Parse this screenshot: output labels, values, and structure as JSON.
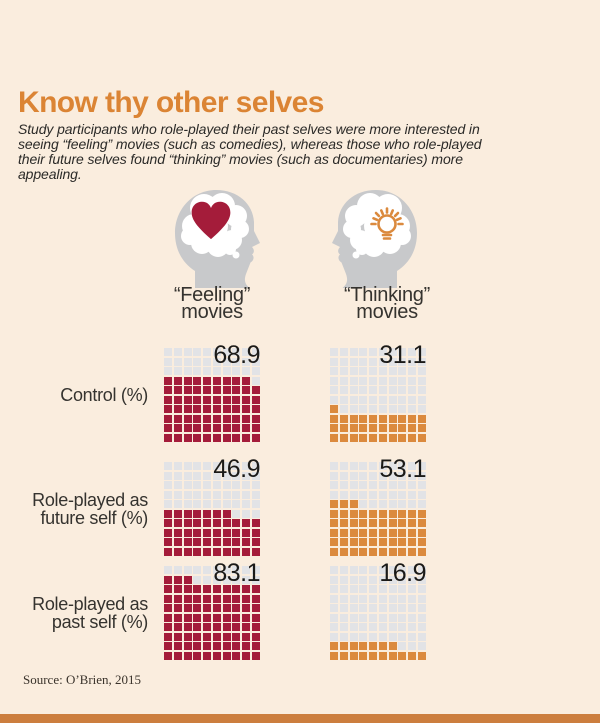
{
  "page": {
    "background_color": "#FAEDDE",
    "bottom_bar_color": "#CC7E3E"
  },
  "chart_data": {
    "type": "waffle",
    "title": "Know thy other selves",
    "subtitle": "Study participants who role-played their past selves were more interested in seeing “feeling” movies (such as comedies), whereas those who role-played their future selves found “thinking” movies (such as documentaries) more appealing.",
    "title_color": "#DB8434",
    "grid": [
      10,
      10
    ],
    "unit": "%",
    "empty_cell_color": "#E2E3E6",
    "categories": [
      "Control (%)",
      "Role-played as future self (%)",
      "Role-played as past self (%)"
    ],
    "rows": [
      {
        "label_lines": [
          "Control (%)"
        ]
      },
      {
        "label_lines": [
          "Role-played as",
          "future self (%)"
        ]
      },
      {
        "label_lines": [
          "Role-played as",
          "past self (%)"
        ]
      }
    ],
    "series": [
      {
        "name": "“Feeling” movies",
        "color": "#A41C3A",
        "values": [
          68.9,
          46.9,
          83.1
        ],
        "label_line1": "“Feeling”",
        "label_line2": "movies",
        "icon": "heart-in-head-icon"
      },
      {
        "name": "“Thinking” movies",
        "color": "#DB8A3E",
        "values": [
          31.1,
          53.1,
          16.9
        ],
        "label_line1": "“Thinking”",
        "label_line2": "movies",
        "icon": "lightbulb-in-head-icon"
      }
    ],
    "legend_position": "none",
    "grid_lines": false
  },
  "figures": {
    "head_color": "#C8C9CB",
    "brain_color": "#FFFFFF",
    "heart_color": "#A41C3A",
    "bulb_color": "#DB8A3E"
  },
  "source": "Source: O’Brien, 2015"
}
